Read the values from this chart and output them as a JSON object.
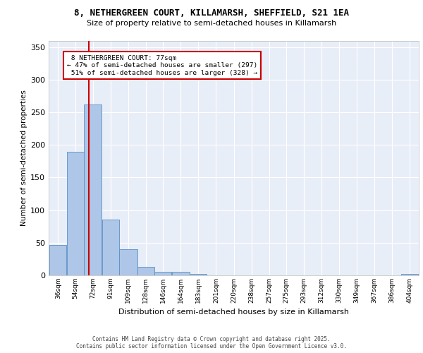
{
  "title_line1": "8, NETHERGREEN COURT, KILLAMARSH, SHEFFIELD, S21 1EA",
  "title_line2": "Size of property relative to semi-detached houses in Killamarsh",
  "xlabel": "Distribution of semi-detached houses by size in Killamarsh",
  "ylabel": "Number of semi-detached properties",
  "bin_labels": [
    "36sqm",
    "54sqm",
    "72sqm",
    "91sqm",
    "109sqm",
    "128sqm",
    "146sqm",
    "164sqm",
    "183sqm",
    "201sqm",
    "220sqm",
    "238sqm",
    "257sqm",
    "275sqm",
    "293sqm",
    "312sqm",
    "330sqm",
    "349sqm",
    "367sqm",
    "386sqm",
    "404sqm"
  ],
  "bin_edges": [
    36,
    54,
    72,
    91,
    109,
    128,
    146,
    164,
    183,
    201,
    220,
    238,
    257,
    275,
    293,
    312,
    330,
    349,
    367,
    386,
    404
  ],
  "bar_heights": [
    47,
    190,
    262,
    85,
    40,
    13,
    5,
    5,
    2,
    0,
    0,
    0,
    0,
    0,
    0,
    0,
    0,
    0,
    0,
    0,
    2
  ],
  "bar_color": "#aec6e8",
  "bar_edge_color": "#5a8fc2",
  "property_size": 77,
  "property_label": "8 NETHERGREEN COURT: 77sqm",
  "pct_smaller": 47,
  "count_smaller": 297,
  "pct_larger": 51,
  "count_larger": 328,
  "vline_color": "#cc0000",
  "ylim": [
    0,
    360
  ],
  "yticks": [
    0,
    50,
    100,
    150,
    200,
    250,
    300,
    350
  ],
  "bg_color": "#e8eef8",
  "grid_color": "#ffffff",
  "fig_bg_color": "#ffffff",
  "footer_line1": "Contains HM Land Registry data © Crown copyright and database right 2025.",
  "footer_line2": "Contains public sector information licensed under the Open Government Licence v3.0."
}
